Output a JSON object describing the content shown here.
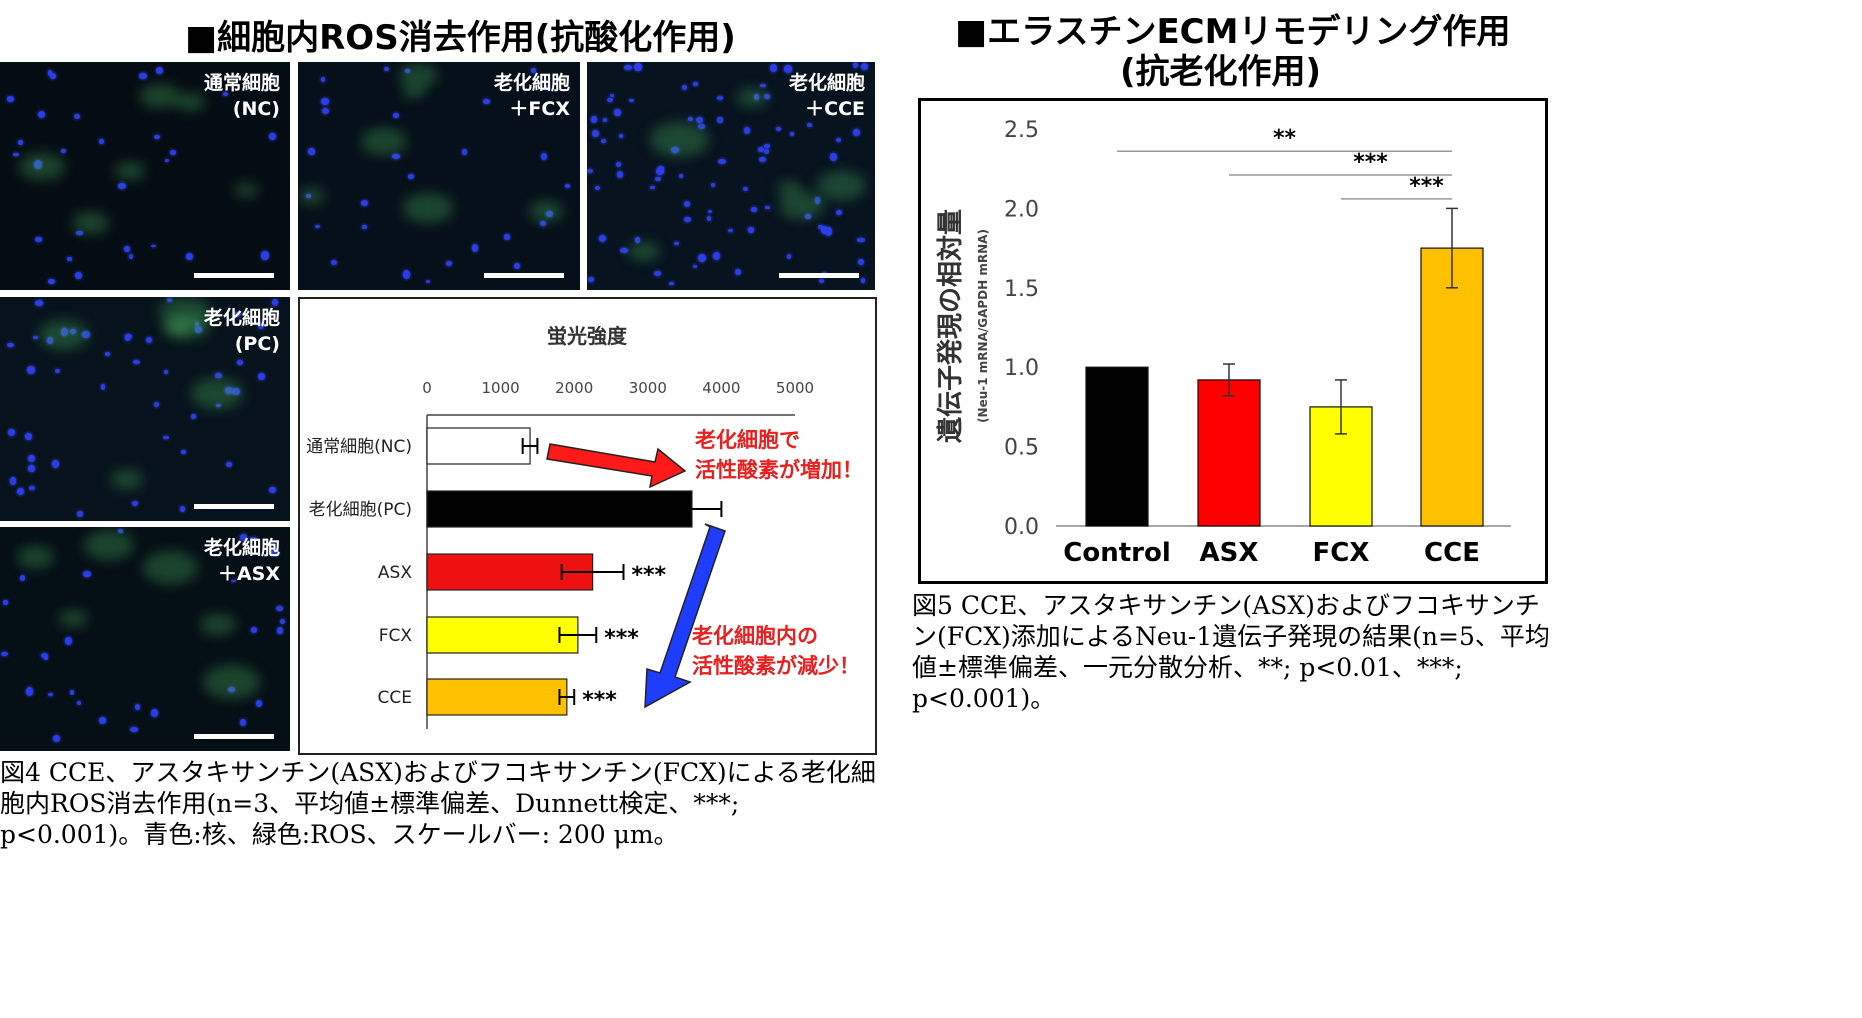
{
  "left_section": {
    "title": "■細胞内ROS消去作用(抗酸化作用)",
    "panels": [
      {
        "label": "通常細胞\n(NC)",
        "density": "low"
      },
      {
        "label": "老化細胞\n＋FCX",
        "density": "low"
      },
      {
        "label": "老化細胞\n＋CCE",
        "density": "high"
      },
      {
        "label": "老化細胞\n(PC)",
        "density": "medium"
      },
      {
        "label": "老化細胞\n＋ASX",
        "density": "low"
      }
    ],
    "caption": "図4 CCE、アスタキサンチン(ASX)およびフコキサンチン(FCX)による老化細胞内ROS消去作用(n=3、平均値±標準偏差、Dunnett検定、***; p<0.001)。青色:核、緑色:ROS、スケールバー: 200 μm。"
  },
  "chart_data": [
    {
      "type": "bar",
      "orientation": "horizontal",
      "title": "蛍光強度",
      "categories": [
        "通常細胞(NC)",
        "老化細胞(PC)",
        "ASX",
        "FCX",
        "CCE"
      ],
      "values": [
        1400,
        3600,
        2250,
        2050,
        1900
      ],
      "errors": [
        100,
        400,
        420,
        250,
        100
      ],
      "significance": [
        "",
        "",
        "***",
        "***",
        "***"
      ],
      "colors": [
        "#ffffff",
        "#000000",
        "#ee1111",
        "#ffff00",
        "#ffc000"
      ],
      "xlim": [
        0,
        5000
      ],
      "xticks": [
        0,
        1000,
        2000,
        3000,
        4000,
        5000
      ],
      "annotations": [
        "老化細胞で\n活性酸素が増加！",
        "老化細胞内の\n活性酸素が減少！"
      ]
    },
    {
      "type": "bar",
      "title": "",
      "ylabel": "遺伝子発現の相対量",
      "ylabel_sub": "(Neu-1 mRNA/GAPDH mRNA)",
      "categories": [
        "Control",
        "ASX",
        "FCX",
        "CCE"
      ],
      "values": [
        1.0,
        0.92,
        0.75,
        1.75
      ],
      "errors": [
        0.0,
        0.1,
        0.17,
        0.25
      ],
      "colors": [
        "#000000",
        "#ff0000",
        "#ffff00",
        "#ffc000"
      ],
      "ylim": [
        0,
        2.5
      ],
      "yticks": [
        "0.0",
        "0.5",
        "1.0",
        "1.5",
        "2.0",
        "2.5"
      ],
      "significance": [
        {
          "from": "Control",
          "to": "CCE",
          "label": "**",
          "y": 2.36
        },
        {
          "from": "ASX",
          "to": "CCE",
          "label": "***",
          "y": 2.21
        },
        {
          "from": "FCX",
          "to": "CCE",
          "label": "***",
          "y": 2.06
        }
      ]
    }
  ],
  "right_section": {
    "title_line1": "■エラスチンECMリモデリング作用",
    "title_line2": "(抗老化作用)",
    "caption": "図5 CCE、アスタキサンチン(ASX)およびフコキサンチン(FCX)添加によるNeu-1遺伝子発現の結果(n=5、平均値±標準偏差、一元分散分析、**; p<0.01、***; p<0.001)。"
  }
}
